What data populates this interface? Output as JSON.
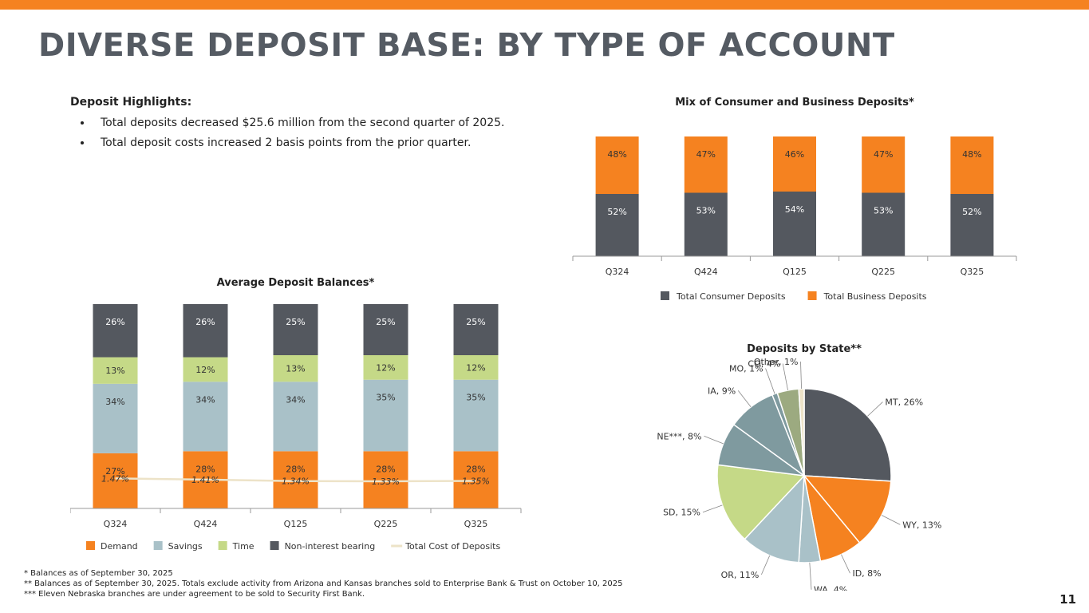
{
  "page": {
    "title": "DIVERSE DEPOSIT BASE: BY TYPE OF ACCOUNT",
    "page_number": "11",
    "accent_color": "#F58220"
  },
  "highlights": {
    "heading": "Deposit Highlights:",
    "bullets": [
      "Total deposits decreased $25.6 million from the second quarter of 2025.",
      "Total deposit costs increased 2 basis points from the prior quarter."
    ]
  },
  "footnotes": [
    "* Balances as of September 30, 2025",
    "** Balances as of September 30, 2025.  Totals exclude activity from Arizona and Kansas branches sold to Enterprise Bank & Trust on October 10, 2025",
    "*** Eleven Nebraska branches are under agreement to be sold to Security First Bank."
  ],
  "chart_data": [
    {
      "type": "bar",
      "stacked": true,
      "title": "Average Deposit Balances*",
      "categories": [
        "Q324",
        "Q424",
        "Q125",
        "Q225",
        "Q325"
      ],
      "series": [
        {
          "name": "Demand",
          "color": "#F58220",
          "values": [
            27,
            28,
            28,
            28,
            28
          ],
          "labels": [
            "27%",
            "28%",
            "28%",
            "28%",
            "28%"
          ]
        },
        {
          "name": "Savings",
          "color": "#A9C1C8",
          "values": [
            34,
            34,
            34,
            35,
            35
          ],
          "labels": [
            "34%",
            "34%",
            "34%",
            "35%",
            "35%"
          ]
        },
        {
          "name": "Time",
          "color": "#C5D987",
          "values": [
            13,
            12,
            13,
            12,
            12
          ],
          "labels": [
            "13%",
            "12%",
            "13%",
            "12%",
            "12%"
          ]
        },
        {
          "name": "Non-interest bearing",
          "color": "#54585F",
          "values": [
            26,
            26,
            25,
            25,
            25
          ],
          "labels": [
            "26%",
            "26%",
            "25%",
            "25%",
            "25%"
          ]
        }
      ],
      "line_series": {
        "name": "Total Cost of Deposits",
        "color": "#EDE3C8",
        "values": [
          1.47,
          1.41,
          1.34,
          1.33,
          1.35
        ],
        "labels": [
          "1.47%",
          "1.41%",
          "1.34%",
          "1.33%",
          "1.35%"
        ]
      },
      "ylim": [
        0,
        100
      ],
      "legend": "bottom"
    },
    {
      "type": "bar",
      "stacked": true,
      "title": "Mix of Consumer and Business Deposits*",
      "categories": [
        "Q324",
        "Q424",
        "Q125",
        "Q225",
        "Q325"
      ],
      "series": [
        {
          "name": "Total Consumer Deposits",
          "color": "#54585F",
          "values": [
            52,
            53,
            54,
            53,
            52
          ],
          "labels": [
            "52%",
            "53%",
            "54%",
            "53%",
            "52%"
          ]
        },
        {
          "name": "Total Business Deposits",
          "color": "#F58220",
          "values": [
            48,
            47,
            46,
            47,
            48
          ],
          "labels": [
            "48%",
            "47%",
            "46%",
            "47%",
            "48%"
          ]
        }
      ],
      "ylim": [
        0,
        100
      ],
      "legend": "bottom"
    },
    {
      "type": "pie",
      "title": "Deposits by State**",
      "slices": [
        {
          "name": "MT",
          "value": 26,
          "label": "MT, 26%",
          "color": "#54585F"
        },
        {
          "name": "WY",
          "value": 13,
          "label": "WY, 13%",
          "color": "#F58220"
        },
        {
          "name": "ID",
          "value": 8,
          "label": "ID, 8%",
          "color": "#F58220"
        },
        {
          "name": "WA",
          "value": 4,
          "label": "WA, 4%",
          "color": "#A9C1C8"
        },
        {
          "name": "OR",
          "value": 11,
          "label": "OR, 11%",
          "color": "#A9C1C8"
        },
        {
          "name": "SD",
          "value": 15,
          "label": "SD, 15%",
          "color": "#C5D987"
        },
        {
          "name": "NE***",
          "value": 8,
          "label": "NE***, 8%",
          "color": "#7F9A9F"
        },
        {
          "name": "IA",
          "value": 9,
          "label": "IA, 9%",
          "color": "#7F9A9F"
        },
        {
          "name": "MO",
          "value": 1,
          "label": "MO, 1%",
          "color": "#7F9A9F"
        },
        {
          "name": "CO",
          "value": 4,
          "label": "CO, 4%",
          "color": "#9CAA80"
        },
        {
          "name": "Other",
          "value": 1,
          "label": "Other, 1%",
          "color": "#EDE3C8"
        }
      ]
    }
  ]
}
